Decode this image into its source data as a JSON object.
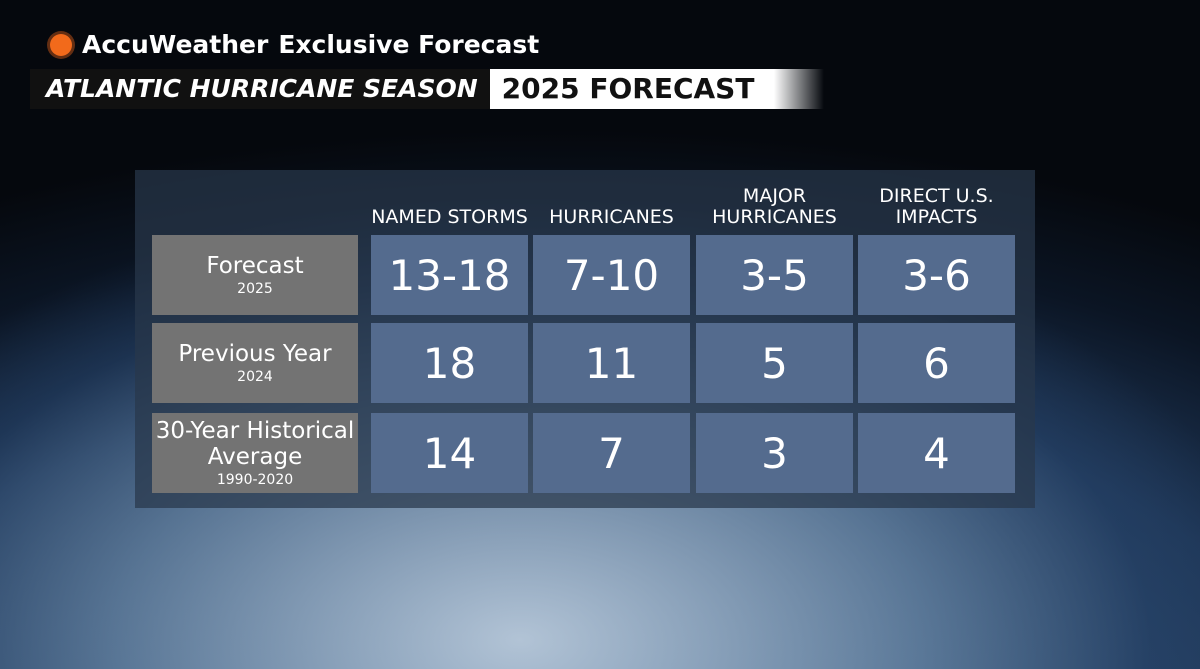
{
  "header": {
    "brand": "AccuWeather",
    "subtitle": "Exclusive Forecast",
    "title_left": "ATLANTIC HURRICANE SEASON",
    "title_right": "2025 FORECAST"
  },
  "table": {
    "columns": [
      "NAMED STORMS",
      "HURRICANES",
      "MAJOR HURRICANES",
      "DIRECT U.S. IMPACTS"
    ],
    "rows": [
      {
        "label": "Forecast",
        "sublabel": "2025",
        "cells": [
          "13-18",
          "7-10",
          "3-5",
          "3-6"
        ]
      },
      {
        "label": "Previous Year",
        "sublabel": "2024",
        "cells": [
          "18",
          "11",
          "5",
          "6"
        ]
      },
      {
        "label": "30-Year Historical Average",
        "sublabel": "1990-2020",
        "cells": [
          "14",
          "7",
          "3",
          "4"
        ]
      }
    ]
  }
}
